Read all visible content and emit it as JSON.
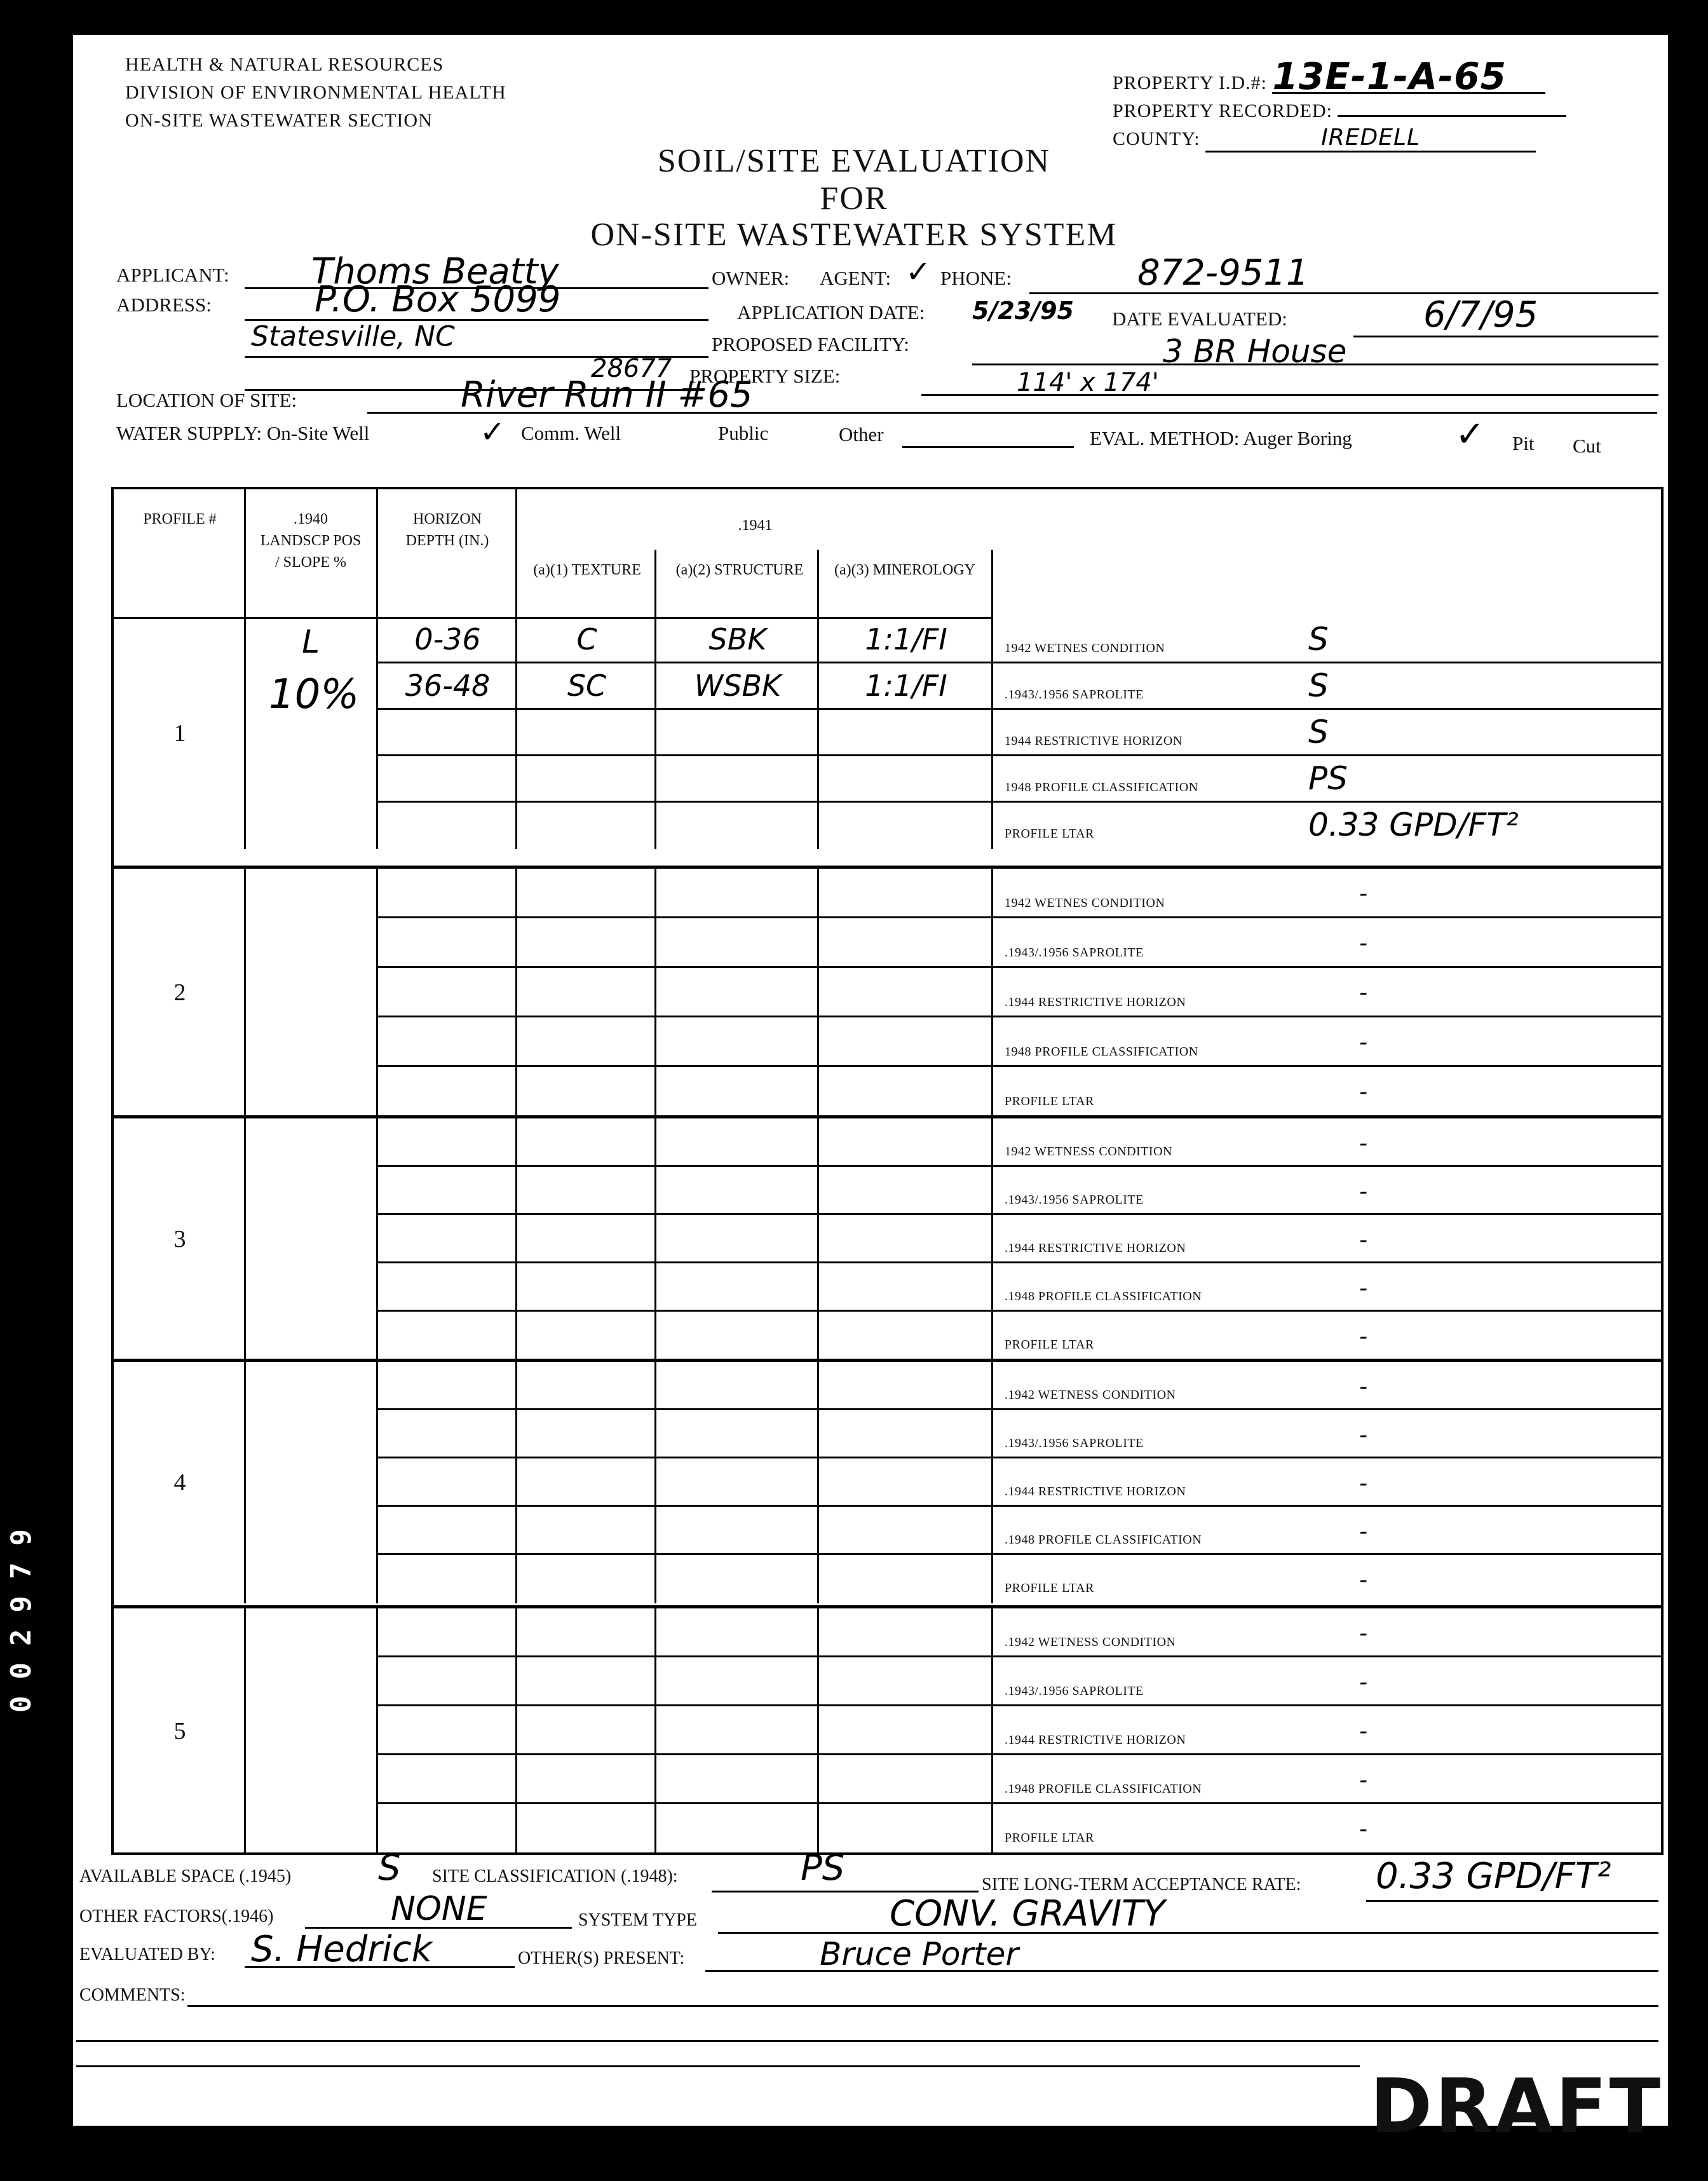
{
  "agency": [
    "HEALTH & NATURAL RESOURCES",
    "DIVISION OF ENVIRONMENTAL HEALTH",
    "ON-SITE WASTEWATER SECTION"
  ],
  "property": {
    "id_label": "PROPERTY I.D.#:",
    "id_value": "13E-1-A-65",
    "recorded_label": "PROPERTY RECORDED:",
    "recorded_value": "",
    "county_label": "COUNTY:",
    "county_value": "IREDELL"
  },
  "title": {
    "line1": "SOIL/SITE EVALUATION",
    "line2": "FOR",
    "line3": "ON-SITE WASTEWATER SYSTEM"
  },
  "fields": {
    "applicant_label": "APPLICANT:",
    "applicant_value": "Thoms Beatty",
    "owner_label": "OWNER:",
    "agent_label": "AGENT:",
    "agent_check": "✓",
    "phone_label": "PHONE:",
    "phone_value": "872-9511",
    "address_label": "ADDRESS:",
    "address_value": "P.O. Box 5099",
    "city_value": "Statesville, NC",
    "zip_value": "28677",
    "app_date_label": "APPLICATION DATE:",
    "app_date_value": "5/23/95",
    "date_eval_label": "DATE EVALUATED:",
    "date_eval_value": "6/7/95",
    "facility_label": "PROPOSED FACILITY:",
    "facility_value": "3 BR House",
    "size_label": "PROPERTY SIZE:",
    "size_value": "114' x 174'",
    "location_label": "LOCATION OF SITE:",
    "location_value": "River Run II #65",
    "water_label": "WATER SUPPLY: On-Site Well",
    "water_check": "✓",
    "comm_label": "Comm. Well",
    "public_label": "Public",
    "other_label": "Other",
    "eval_label": "EVAL. METHOD: Auger Boring",
    "eval_check": "✓",
    "pit_label": "Pit",
    "cut_label": "Cut"
  },
  "table": {
    "headers": {
      "profile": "PROFILE #",
      "landscape": ".1940 LANDSCP POS / SLOPE %",
      "depth": "HORIZON DEPTH (IN.)",
      "group": ".1941",
      "texture": "(a)(1) TEXTURE",
      "structure": "(a)(2) STRUCTURE",
      "mineralogy": "(a)(3) MINEROLOGY"
    },
    "profiles": [
      {
        "number": "1",
        "landscape": "L",
        "slope": "10%",
        "horizons": [
          {
            "depth": "0-36",
            "texture": "C",
            "structure": "SBK",
            "mineralogy": "1:1/FI"
          },
          {
            "depth": "36-48",
            "texture": "SC",
            "structure": "WSBK",
            "mineralogy": "1:1/FI"
          },
          {
            "depth": "",
            "texture": "",
            "structure": "",
            "mineralogy": ""
          },
          {
            "depth": "",
            "texture": "",
            "structure": "",
            "mineralogy": ""
          },
          {
            "depth": "",
            "texture": "",
            "structure": "",
            "mineralogy": ""
          }
        ],
        "ratings": [
          {
            "label": "1942 WETNES CONDITION",
            "value": "S"
          },
          {
            "label": ".1943/.1956 SAPROLITE",
            "value": "S"
          },
          {
            "label": "1944 RESTRICTIVE HORIZON",
            "value": "S"
          },
          {
            "label": "1948 PROFILE CLASSIFICATION",
            "value": "PS"
          },
          {
            "label": "PROFILE LTAR",
            "value": "0.33 GPD/FT²"
          }
        ]
      },
      {
        "number": "2",
        "landscape": "",
        "slope": "",
        "horizons": [
          {},
          {},
          {},
          {},
          {}
        ],
        "ratings": [
          {
            "label": "1942 WETNES CONDITION",
            "value": "-"
          },
          {
            "label": ".1943/.1956 SAPROLITE",
            "value": "-"
          },
          {
            "label": ".1944 RESTRICTIVE HORIZON",
            "value": "-"
          },
          {
            "label": "1948 PROFILE CLASSIFICATION",
            "value": "-"
          },
          {
            "label": "PROFILE LTAR",
            "value": "-"
          }
        ]
      },
      {
        "number": "3",
        "landscape": "",
        "slope": "",
        "horizons": [
          {},
          {},
          {},
          {},
          {}
        ],
        "ratings": [
          {
            "label": "1942 WETNESS CONDITION",
            "value": "-"
          },
          {
            "label": ".1943/.1956 SAPROLITE",
            "value": "-"
          },
          {
            "label": ".1944 RESTRICTIVE HORIZON",
            "value": "-"
          },
          {
            "label": ".1948 PROFILE CLASSIFICATION",
            "value": "-"
          },
          {
            "label": "PROFILE LTAR",
            "value": "-"
          }
        ]
      },
      {
        "number": "4",
        "landscape": "",
        "slope": "",
        "horizons": [
          {},
          {},
          {},
          {},
          {}
        ],
        "ratings": [
          {
            "label": ".1942 WETNESS CONDITION",
            "value": "-"
          },
          {
            "label": ".1943/.1956 SAPROLITE",
            "value": "-"
          },
          {
            "label": ".1944 RESTRICTIVE HORIZON",
            "value": "-"
          },
          {
            "label": ".1948 PROFILE CLASSIFICATION",
            "value": "-"
          },
          {
            "label": "PROFILE LTAR",
            "value": "-"
          }
        ]
      },
      {
        "number": "5",
        "landscape": "",
        "slope": "",
        "horizons": [
          {},
          {},
          {},
          {},
          {}
        ],
        "ratings": [
          {
            "label": ".1942 WETNESS CONDITION",
            "value": "-"
          },
          {
            "label": ".1943/.1956 SAPROLITE",
            "value": "-"
          },
          {
            "label": ".1944 RESTRICTIVE HORIZON",
            "value": "-"
          },
          {
            "label": ".1948 PROFILE CLASSIFICATION",
            "value": "-"
          },
          {
            "label": "PROFILE LTAR",
            "value": "-"
          }
        ]
      }
    ]
  },
  "summary": {
    "space_label": "AVAILABLE SPACE (.1945)",
    "space_value": "S",
    "siteclass_label": "SITE CLASSIFICATION (.1948):",
    "siteclass_value": "PS",
    "ltar_label": "SITE LONG-TERM ACCEPTANCE RATE:",
    "ltar_value": "0.33 GPD/FT²",
    "other_factors_label": "OTHER FACTORS(.1946)",
    "other_factors_value": "NONE",
    "system_label": "SYSTEM TYPE",
    "system_value": "CONV. GRAVITY",
    "evaluated_label": "EVALUATED BY:",
    "evaluated_value": "S. Hedrick",
    "present_label": "OTHER(S) PRESENT:",
    "present_value": "Bruce Porter",
    "comments_label": "COMMENTS:"
  },
  "stamp": "DRAFT",
  "side_code": "002979"
}
